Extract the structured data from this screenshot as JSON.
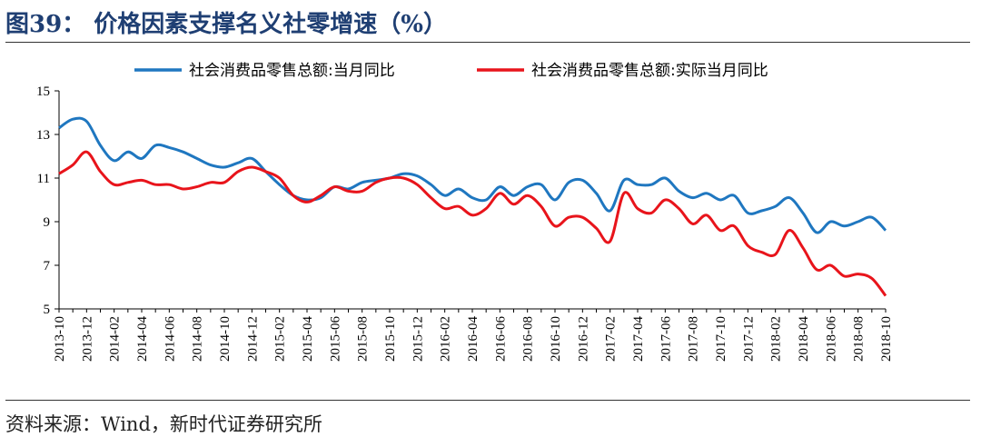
{
  "title": "图39： 价格因素支撑名义社零增速（%）",
  "source": "资料来源：Wind，新时代证券研究所",
  "colors": {
    "nominal": "#1f77c0",
    "real": "#e8141b",
    "title": "#1f3f73"
  },
  "chart_data": {
    "type": "line",
    "ylim": [
      5,
      15
    ],
    "yticks": [
      5,
      7,
      9,
      11,
      13,
      15
    ],
    "legend_position": "top",
    "x": [
      "2013-10",
      "2013-11",
      "2013-12",
      "2014-01",
      "2014-02",
      "2014-03",
      "2014-04",
      "2014-05",
      "2014-06",
      "2014-07",
      "2014-08",
      "2014-09",
      "2014-10",
      "2014-11",
      "2014-12",
      "2015-01",
      "2015-02",
      "2015-03",
      "2015-04",
      "2015-05",
      "2015-06",
      "2015-07",
      "2015-08",
      "2015-09",
      "2015-10",
      "2015-11",
      "2015-12",
      "2016-01",
      "2016-02",
      "2016-03",
      "2016-04",
      "2016-05",
      "2016-06",
      "2016-07",
      "2016-08",
      "2016-09",
      "2016-10",
      "2016-11",
      "2016-12",
      "2017-01",
      "2017-02",
      "2017-03",
      "2017-04",
      "2017-05",
      "2017-06",
      "2017-07",
      "2017-08",
      "2017-09",
      "2017-10",
      "2017-11",
      "2017-12",
      "2018-01",
      "2018-02",
      "2018-03",
      "2018-04",
      "2018-05",
      "2018-06",
      "2018-07",
      "2018-08",
      "2018-09",
      "2018-10"
    ],
    "xtick_labels": [
      "2013-10",
      "2013-12",
      "2014-02",
      "2014-04",
      "2014-06",
      "2014-08",
      "2014-10",
      "2014-12",
      "2015-02",
      "2015-04",
      "2015-06",
      "2015-08",
      "2015-10",
      "2015-12",
      "2016-02",
      "2016-04",
      "2016-06",
      "2016-08",
      "2016-10",
      "2016-12",
      "2017-02",
      "2017-04",
      "2017-06",
      "2017-08",
      "2017-10",
      "2017-12",
      "2018-02",
      "2018-04",
      "2018-06",
      "2018-08",
      "2018-10"
    ],
    "series": [
      {
        "name": "社会消费品零售总额:当月同比",
        "values": [
          13.3,
          13.7,
          13.6,
          12.5,
          11.8,
          12.2,
          11.9,
          12.5,
          12.4,
          12.2,
          11.9,
          11.6,
          11.5,
          11.7,
          11.9,
          11.3,
          10.7,
          10.2,
          10.0,
          10.1,
          10.6,
          10.5,
          10.8,
          10.9,
          11.0,
          11.2,
          11.1,
          10.7,
          10.2,
          10.5,
          10.1,
          10.0,
          10.6,
          10.2,
          10.6,
          10.7,
          10.0,
          10.8,
          10.9,
          10.3,
          9.5,
          10.9,
          10.7,
          10.7,
          11.0,
          10.4,
          10.1,
          10.3,
          10.0,
          10.2,
          9.4,
          9.5,
          9.7,
          10.1,
          9.4,
          8.5,
          9.0,
          8.8,
          9.0,
          9.2,
          8.6
        ]
      },
      {
        "name": "社会消费品零售总额:实际当月同比",
        "values": [
          11.2,
          11.6,
          12.2,
          11.3,
          10.7,
          10.8,
          10.9,
          10.7,
          10.7,
          10.5,
          10.6,
          10.8,
          10.8,
          11.3,
          11.5,
          11.3,
          11.0,
          10.2,
          9.9,
          10.2,
          10.6,
          10.4,
          10.4,
          10.8,
          11.0,
          11.0,
          10.7,
          10.1,
          9.6,
          9.7,
          9.3,
          9.6,
          10.3,
          9.8,
          10.2,
          9.7,
          8.8,
          9.2,
          9.2,
          8.7,
          8.1,
          10.3,
          9.6,
          9.4,
          10.0,
          9.6,
          8.9,
          9.3,
          8.6,
          8.8,
          7.9,
          7.6,
          7.5,
          8.6,
          7.8,
          6.8,
          7.0,
          6.5,
          6.6,
          6.4,
          5.6
        ]
      }
    ]
  }
}
